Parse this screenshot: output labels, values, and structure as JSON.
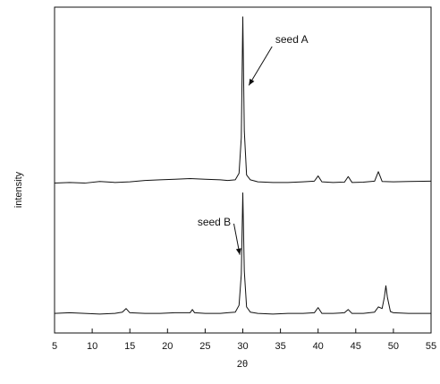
{
  "chart_data": {
    "type": "line",
    "title": "",
    "xlabel": "2θ",
    "ylabel": "intensity",
    "xlim": [
      5,
      55
    ],
    "ylim": [
      0,
      10
    ],
    "grid": false,
    "xticks": [
      5,
      10,
      15,
      20,
      25,
      30,
      35,
      40,
      45,
      50,
      55
    ],
    "y_tick_labels": false,
    "line_color": "#111111",
    "series": [
      {
        "name": "seed A",
        "x": [
          5,
          7,
          9,
          11,
          13,
          15,
          17,
          19,
          21,
          23,
          25,
          27,
          28,
          29,
          29.5,
          29.8,
          30.0,
          30.2,
          30.5,
          31,
          32,
          34,
          36,
          38,
          39.5,
          40,
          40.5,
          42,
          43.5,
          44,
          44.5,
          46,
          47.5,
          48,
          48.5,
          50,
          52,
          55
        ],
        "y": [
          4.6,
          4.62,
          4.6,
          4.65,
          4.62,
          4.64,
          4.68,
          4.7,
          4.72,
          4.74,
          4.72,
          4.7,
          4.68,
          4.7,
          4.9,
          6.0,
          9.7,
          6.2,
          4.85,
          4.7,
          4.64,
          4.62,
          4.62,
          4.64,
          4.66,
          4.82,
          4.64,
          4.62,
          4.63,
          4.8,
          4.62,
          4.63,
          4.66,
          4.95,
          4.65,
          4.64,
          4.65,
          4.66
        ]
      },
      {
        "name": "seed B",
        "x": [
          5,
          7,
          9,
          11,
          13,
          14,
          14.5,
          15,
          17,
          19,
          21,
          23,
          23.3,
          23.6,
          25,
          27,
          28,
          29,
          29.5,
          29.8,
          30.0,
          30.2,
          30.5,
          31,
          32,
          34,
          36,
          38,
          39.5,
          40,
          40.5,
          42,
          43.5,
          44,
          44.5,
          46,
          47.5,
          48,
          48.5,
          48.8,
          49.0,
          49.2,
          49.6,
          50,
          52,
          55
        ],
        "y": [
          0.6,
          0.62,
          0.6,
          0.58,
          0.6,
          0.64,
          0.75,
          0.62,
          0.6,
          0.6,
          0.62,
          0.62,
          0.72,
          0.62,
          0.6,
          0.6,
          0.62,
          0.64,
          0.85,
          1.8,
          4.3,
          1.9,
          0.8,
          0.64,
          0.6,
          0.58,
          0.6,
          0.6,
          0.62,
          0.78,
          0.6,
          0.6,
          0.62,
          0.72,
          0.6,
          0.6,
          0.64,
          0.8,
          0.75,
          1.1,
          1.45,
          1.1,
          0.66,
          0.62,
          0.6,
          0.6
        ]
      }
    ],
    "annotations": [
      {
        "text": "seed A",
        "text_x": 36.5,
        "text_y": 8.9,
        "arrow_to_x": 30.8,
        "arrow_to_y": 7.6
      },
      {
        "text": "seed B",
        "text_x": 26.2,
        "text_y": 3.3,
        "arrow_to_x": 29.6,
        "arrow_to_y": 2.4
      }
    ]
  }
}
